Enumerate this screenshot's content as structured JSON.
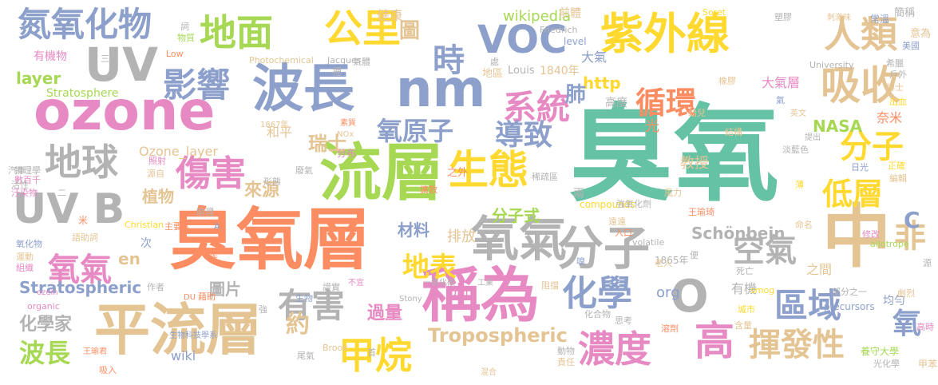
{
  "palette": {
    "teal": "#66c2a5",
    "orange": "#fc8d62",
    "blue": "#8da0cb",
    "pink": "#e78ac3",
    "green": "#a6d854",
    "yellow": "#ffd92f",
    "tan": "#e5c494",
    "gray": "#b3b3b3"
  },
  "words": [
    {
      "text": "臭氧",
      "color": "teal"
    },
    {
      "text": "臭氧層",
      "color": "orange"
    },
    {
      "text": "ozone",
      "color": "pink"
    },
    {
      "text": "平流層",
      "color": "tan"
    },
    {
      "text": "流層",
      "color": "green"
    },
    {
      "text": "稱為",
      "color": "pink"
    },
    {
      "text": "波長",
      "color": "blue"
    },
    {
      "text": "nm",
      "color": "blue"
    },
    {
      "text": "紫外線",
      "color": "yellow"
    },
    {
      "text": "中",
      "color": "tan"
    },
    {
      "text": "氧氣",
      "color": "gray"
    },
    {
      "text": "分子",
      "color": "gray"
    },
    {
      "text": "UV",
      "color": "gray"
    },
    {
      "text": "地面",
      "color": "green"
    },
    {
      "text": "VOC",
      "color": "blue"
    },
    {
      "text": "吸收",
      "color": "tan"
    },
    {
      "text": "公里",
      "color": "yellow"
    },
    {
      "text": "人類",
      "color": "tan"
    },
    {
      "text": "UV B",
      "color": "gray"
    },
    {
      "text": "傷害",
      "color": "pink"
    },
    {
      "text": "生態",
      "color": "yellow"
    },
    {
      "text": "地球",
      "color": "gray"
    },
    {
      "text": "影響",
      "color": "blue"
    },
    {
      "text": "氮氧化物",
      "color": "blue"
    },
    {
      "text": "時",
      "color": "blue"
    },
    {
      "text": "系統",
      "color": "pink"
    },
    {
      "text": "循環",
      "color": "orange"
    },
    {
      "text": "導致",
      "color": "blue"
    },
    {
      "text": "氧原子",
      "color": "blue"
    },
    {
      "text": "有害",
      "color": "gray"
    },
    {
      "text": "化學",
      "color": "blue"
    },
    {
      "text": "空氣",
      "color": "gray"
    },
    {
      "text": "區域",
      "color": "blue"
    },
    {
      "text": "甲烷",
      "color": "yellow"
    },
    {
      "text": "濃度",
      "color": "pink"
    },
    {
      "text": "高",
      "color": "pink"
    },
    {
      "text": "揮發性",
      "color": "tan"
    },
    {
      "text": "氧氣",
      "color": "pink"
    },
    {
      "text": "分子",
      "color": "yellow"
    },
    {
      "text": "低層",
      "color": "yellow"
    },
    {
      "text": "地表",
      "color": "yellow"
    },
    {
      "text": "O",
      "color": "gray"
    },
    {
      "text": "非",
      "color": "tan"
    },
    {
      "text": "C",
      "color": "blue"
    },
    {
      "text": "氧",
      "color": "blue"
    },
    {
      "text": "約",
      "color": "tan"
    },
    {
      "text": "Tropospheric",
      "color": "tan"
    },
    {
      "text": "Stratospheric",
      "color": "blue"
    },
    {
      "text": "波長",
      "color": "green"
    },
    {
      "text": "化學家",
      "color": "gray"
    },
    {
      "text": "Schönbein",
      "color": "gray"
    },
    {
      "text": "NASA",
      "color": "green"
    },
    {
      "text": "瑞士",
      "color": "tan"
    },
    {
      "text": "和平",
      "color": "tan"
    },
    {
      "text": "植物",
      "color": "tan"
    },
    {
      "text": "來源",
      "color": "tan"
    },
    {
      "text": "圖片",
      "color": "gray"
    },
    {
      "text": "材料",
      "color": "blue"
    },
    {
      "text": "排放",
      "color": "tan"
    },
    {
      "text": "分子式",
      "color": "green"
    },
    {
      "text": "過量",
      "color": "pink"
    },
    {
      "text": "wiki",
      "color": "blue"
    },
    {
      "text": "健康",
      "color": "tan"
    },
    {
      "text": "wikipedia",
      "color": "green"
    },
    {
      "text": "http",
      "color": "yellow"
    },
    {
      "text": "肺",
      "color": "blue"
    },
    {
      "text": "光",
      "color": "orange"
    },
    {
      "text": "大氣層",
      "color": "pink"
    },
    {
      "text": "layer",
      "color": "green"
    },
    {
      "text": "en",
      "color": "tan"
    },
    {
      "text": "Ozone_layer",
      "color": "tan"
    },
    {
      "text": "org",
      "color": "blue"
    },
    {
      "text": "有機",
      "color": "gray"
    },
    {
      "text": "之間",
      "color": "tan"
    },
    {
      "text": "均勻",
      "color": "blue"
    },
    {
      "text": "ppm",
      "color": "pink"
    },
    {
      "text": "大氣",
      "color": "blue"
    },
    {
      "text": "高度",
      "color": "gray"
    },
    {
      "text": "奈米",
      "color": "orange"
    },
    {
      "text": "分布",
      "color": "pink"
    },
    {
      "text": "Stratosphere",
      "color": "green"
    },
    {
      "text": "圖",
      "color": "tan"
    },
    {
      "text": "前體",
      "color": "tan"
    },
    {
      "text": "1840年",
      "color": "tan"
    },
    {
      "text": "Louis",
      "color": "gray"
    },
    {
      "text": "地區",
      "color": "tan"
    },
    {
      "text": "Photochemical",
      "color": "tan"
    },
    {
      "text": "Jacques",
      "color": "gray"
    },
    {
      "text": "Friedrich",
      "color": "gray"
    },
    {
      "text": "level",
      "color": "blue"
    },
    {
      "text": "University",
      "color": "gray"
    },
    {
      "text": "Soret",
      "color": "yellow"
    },
    {
      "text": "有機物",
      "color": "pink"
    },
    {
      "text": "Low",
      "color": "orange"
    },
    {
      "text": "1867年",
      "color": "tan"
    },
    {
      "text": "NOx",
      "color": "tan"
    },
    {
      "text": "素質",
      "color": "orange"
    },
    {
      "text": "Christian",
      "color": "yellow"
    },
    {
      "text": "compounds",
      "color": "yellow"
    },
    {
      "text": "Stony",
      "color": "gray"
    },
    {
      "text": "Brook",
      "color": "tan"
    },
    {
      "text": "1865年",
      "color": "gray"
    },
    {
      "text": "smog",
      "color": "yellow"
    },
    {
      "text": "precursors",
      "color": "blue"
    },
    {
      "text": "allotrope",
      "color": "green"
    },
    {
      "text": "volatile",
      "color": "gray"
    },
    {
      "text": "organic",
      "color": "pink"
    },
    {
      "text": "ozein",
      "color": "pink"
    },
    {
      "text": "DU",
      "color": "orange"
    },
    {
      "text": "生物科技學系",
      "color": "blue"
    },
    {
      "text": "王瑜君",
      "color": "orange"
    },
    {
      "text": "王瑜琦",
      "color": "orange"
    },
    {
      "text": "養守大學",
      "color": "green"
    },
    {
      "text": "光化學",
      "color": "gray"
    },
    {
      "text": "工業",
      "color": "gray"
    },
    {
      "text": "吸入",
      "color": "orange"
    },
    {
      "text": "強氧化劑",
      "color": "gray"
    },
    {
      "text": "一氧化碳",
      "color": "gray"
    },
    {
      "text": "淡藍色",
      "color": "gray"
    },
    {
      "text": "刺激味",
      "color": "tan"
    },
    {
      "text": "稀疏區",
      "color": "gray"
    },
    {
      "text": "氣體",
      "color": "gray"
    },
    {
      "text": "常溫",
      "color": "blue"
    },
    {
      "text": "氣",
      "color": "blue"
    },
    {
      "text": "英文",
      "color": "tan"
    },
    {
      "text": "結構",
      "color": "tan"
    },
    {
      "text": "日光",
      "color": "blue"
    },
    {
      "text": "正確",
      "color": "yellow"
    },
    {
      "text": "編輯",
      "color": "tan"
    },
    {
      "text": "簡稱",
      "color": "gray"
    },
    {
      "text": "意為",
      "color": "tan"
    },
    {
      "text": "美國",
      "color": "blue"
    },
    {
      "text": "希臘",
      "color": "gray"
    },
    {
      "text": "博士",
      "color": "tan"
    },
    {
      "text": "出血",
      "color": "yellow"
    },
    {
      "text": "戶外",
      "color": "gray"
    },
    {
      "text": "幼兒",
      "color": "tan"
    },
    {
      "text": "提出",
      "color": "gray"
    },
    {
      "text": "教授",
      "color": "tan"
    },
    {
      "text": "薄",
      "color": "yellow"
    },
    {
      "text": "風力",
      "color": "tan"
    },
    {
      "text": "命名",
      "color": "tan"
    },
    {
      "text": "修改",
      "color": "pink"
    },
    {
      "text": "部分之一",
      "color": "gray"
    },
    {
      "text": "劇烈",
      "color": "tan"
    },
    {
      "text": "高時",
      "color": "pink"
    },
    {
      "text": "城市",
      "color": "yellow"
    },
    {
      "text": "老人",
      "color": "tan"
    },
    {
      "text": "死亡",
      "color": "gray"
    },
    {
      "text": "嗅",
      "color": "blue"
    },
    {
      "text": "入口",
      "color": "orange"
    },
    {
      "text": "遠遠",
      "color": "tan"
    },
    {
      "text": "思考",
      "color": "gray"
    },
    {
      "text": "溶劑",
      "color": "orange"
    },
    {
      "text": "含量",
      "color": "tan"
    },
    {
      "text": "動物",
      "color": "gray"
    },
    {
      "text": "責任",
      "color": "tan"
    },
    {
      "text": "化合物",
      "color": "gray"
    },
    {
      "text": "阻擋",
      "color": "tan"
    },
    {
      "text": "生物",
      "color": "blue"
    },
    {
      "text": "證實",
      "color": "gray"
    },
    {
      "text": "不宜",
      "color": "pink"
    },
    {
      "text": "藉助",
      "color": "orange"
    },
    {
      "text": "作者",
      "color": "gray"
    },
    {
      "text": "數百千",
      "color": "pink"
    },
    {
      "text": "汙染物",
      "color": "pink"
    },
    {
      "text": "物理學",
      "color": "gray"
    },
    {
      "text": "活性",
      "color": "gray"
    },
    {
      "text": "汽車",
      "color": "gray"
    },
    {
      "text": "氧化物",
      "color": "blue"
    },
    {
      "text": "運動",
      "color": "tan"
    },
    {
      "text": "組織",
      "color": "pink"
    },
    {
      "text": "源自",
      "color": "tan"
    },
    {
      "text": "照射",
      "color": "pink"
    },
    {
      "text": "形態",
      "color": "gray"
    },
    {
      "text": "廢氣",
      "color": "gray"
    },
    {
      "text": "助理",
      "color": "gray"
    },
    {
      "text": "主要人",
      "color": "orange"
    },
    {
      "text": "語助詞",
      "color": "tan"
    },
    {
      "text": "物質",
      "color": "green"
    },
    {
      "text": "處",
      "color": "gray"
    },
    {
      "text": "塑膠",
      "color": "gray"
    },
    {
      "text": "橡膠",
      "color": "tan"
    },
    {
      "text": "擴散",
      "color": "orange"
    },
    {
      "text": "首",
      "color": "gray"
    },
    {
      "text": "尾氣",
      "color": "gray"
    },
    {
      "text": "甲苯",
      "color": "tan"
    },
    {
      "text": "混合",
      "color": "tan"
    },
    {
      "text": "兩",
      "color": "gray"
    },
    {
      "text": "之外",
      "color": "orange"
    },
    {
      "text": "A",
      "color": "blue"
    },
    {
      "text": "三",
      "color": "gray"
    },
    {
      "text": "二",
      "color": "gray"
    },
    {
      "text": "米",
      "color": "orange"
    },
    {
      "text": "次",
      "color": "blue"
    },
    {
      "text": "便",
      "color": "gray"
    },
    {
      "text": "源",
      "color": "gray"
    },
    {
      "text": "作",
      "color": "orange"
    },
    {
      "text": "強",
      "color": "gray"
    },
    {
      "text": "裡",
      "color": "gray"
    },
    {
      "text": "詞",
      "color": "gray"
    },
    {
      "text": "nm",
      "color": "gray"
    },
    {
      "text": "氣體",
      "color": "tan"
    }
  ]
}
